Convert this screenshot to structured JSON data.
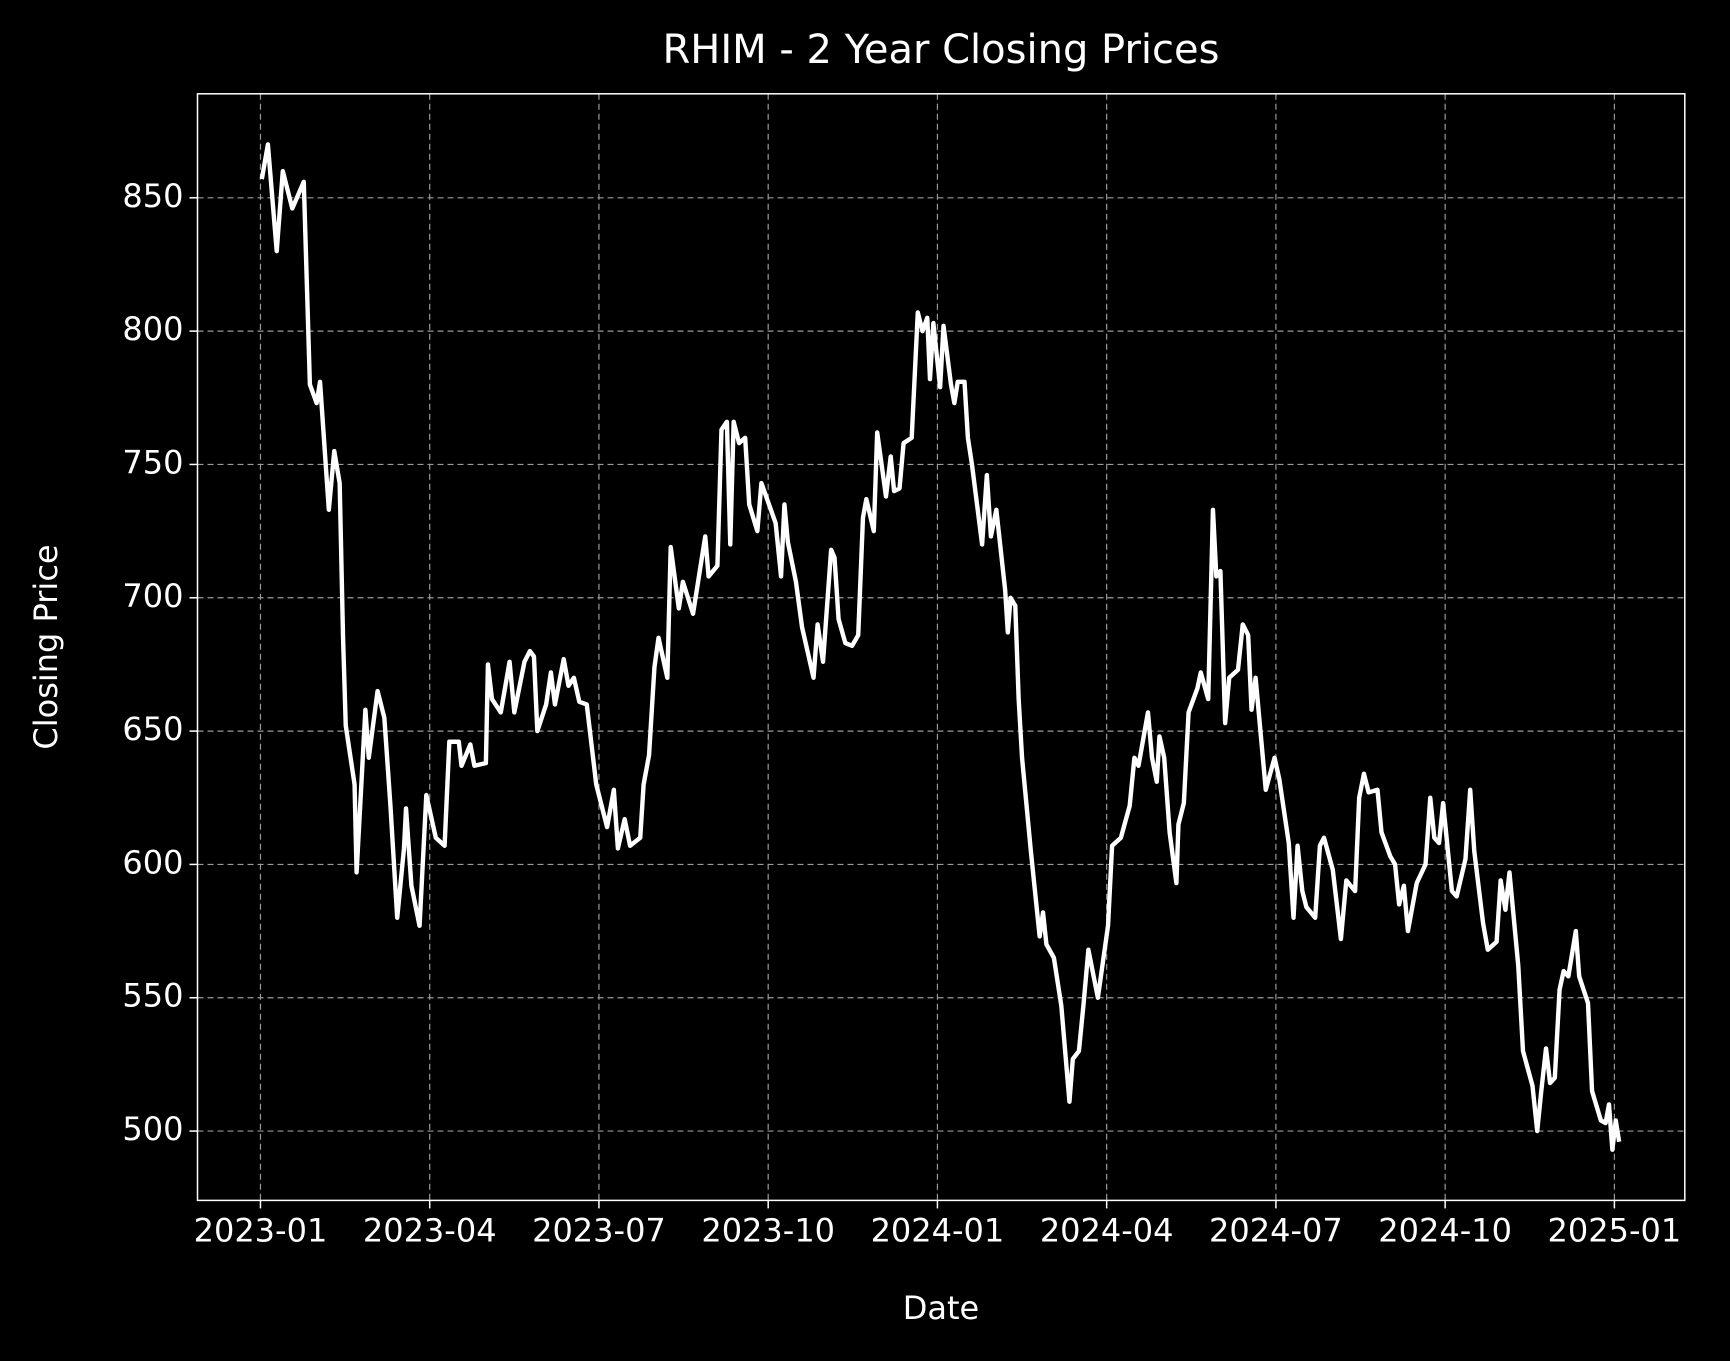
{
  "chart_data": {
    "type": "line",
    "title": "RHIM - 2 Year Closing Prices",
    "x_label": "Date",
    "y_label": "Closing Price",
    "x": [
      2023.002,
      2023.011,
      2023.024,
      2023.033,
      2023.047,
      2023.064,
      2023.073,
      2023.083,
      2023.088,
      2023.101,
      2023.109,
      2023.117,
      2023.122,
      2023.126,
      2023.139,
      2023.142,
      2023.155,
      2023.16,
      2023.173,
      2023.183,
      2023.192,
      2023.202,
      2023.212,
      2023.215,
      2023.223,
      2023.235,
      2023.245,
      2023.259,
      2023.272,
      2023.279,
      2023.293,
      2023.297,
      2023.31,
      2023.316,
      2023.333,
      2023.336,
      2023.342,
      2023.355,
      2023.368,
      2023.375,
      2023.39,
      2023.398,
      2023.404,
      2023.409,
      2023.422,
      2023.429,
      2023.435,
      2023.448,
      2023.455,
      2023.463,
      2023.471,
      2023.482,
      2023.496,
      2023.512,
      2023.522,
      2023.528,
      2023.538,
      2023.546,
      2023.561,
      2023.566,
      2023.574,
      2023.582,
      2023.588,
      2023.601,
      2023.606,
      2023.618,
      2023.624,
      2023.639,
      2023.657,
      2023.662,
      2023.675,
      2023.681,
      2023.689,
      2023.694,
      2023.699,
      2023.707,
      2023.716,
      2023.722,
      2023.734,
      2023.74,
      2023.761,
      2023.769,
      2023.774,
      2023.779,
      2023.791,
      2023.8,
      2023.817,
      2023.823,
      2023.831,
      2023.843,
      2023.848,
      2023.854,
      2023.864,
      2023.874,
      2023.883,
      2023.89,
      2023.895,
      2023.906,
      2023.911,
      2023.924,
      2023.931,
      2023.936,
      2023.944,
      2023.95,
      2023.962,
      2023.971,
      2023.978,
      2023.985,
      2023.989,
      2023.994,
      2024.004,
      2024.009,
      2024.02,
      2024.025,
      2024.03,
      2024.04,
      2024.045,
      2024.051,
      2024.066,
      2024.073,
      2024.079,
      2024.087,
      2024.1,
      2024.104,
      2024.108,
      2024.115,
      2024.12,
      2024.125,
      2024.138,
      2024.151,
      2024.156,
      2024.161,
      2024.172,
      2024.183,
      2024.195,
      2024.2,
      2024.209,
      2024.216,
      2024.223,
      2024.237,
      2024.252,
      2024.258,
      2024.271,
      2024.284,
      2024.291,
      2024.297,
      2024.311,
      2024.317,
      2024.324,
      2024.328,
      2024.335,
      2024.343,
      2024.353,
      2024.356,
      2024.364,
      2024.371,
      2024.384,
      2024.389,
      2024.4,
      2024.407,
      2024.412,
      2024.418,
      2024.425,
      2024.431,
      2024.444,
      2024.451,
      2024.459,
      2024.464,
      2024.47,
      2024.485,
      2024.498,
      2024.505,
      2024.519,
      2024.526,
      2024.532,
      2024.539,
      2024.545,
      2024.558,
      2024.565,
      2024.571,
      2024.584,
      2024.596,
      2024.604,
      2024.617,
      2024.623,
      2024.63,
      2024.637,
      2024.65,
      2024.656,
      2024.669,
      2024.676,
      2024.682,
      2024.689,
      2024.695,
      2024.708,
      2024.721,
      2024.728,
      2024.734,
      2024.741,
      2024.747,
      2024.76,
      2024.767,
      2024.78,
      2024.787,
      2024.793,
      2024.806,
      2024.813,
      2024.826,
      2024.832,
      2024.839,
      2024.845,
      2024.858,
      2024.865,
      2024.879,
      2024.886,
      2024.892,
      2024.899,
      2024.905,
      2024.912,
      2024.919,
      2024.925,
      2024.932,
      2024.943,
      2024.948,
      2024.961,
      2024.967,
      2024.98,
      2024.987,
      2024.992,
      2024.997,
      2025.002,
      2025.007
    ],
    "series": [
      {
        "name": "Close",
        "color": "#ffffff",
        "values": [
          857,
          870,
          830,
          860,
          846,
          856,
          780,
          773,
          781,
          733,
          755,
          743,
          685,
          652,
          630,
          597,
          658,
          640,
          665,
          655,
          622,
          580,
          606,
          621,
          592,
          577,
          626,
          610,
          607,
          646,
          646,
          637,
          645,
          637,
          638,
          675,
          662,
          657,
          676,
          657,
          676,
          680,
          678,
          650,
          660,
          672,
          660,
          677,
          667,
          670,
          661,
          660,
          630,
          614,
          628,
          606,
          617,
          607,
          610,
          630,
          641,
          674,
          685,
          670,
          719,
          696,
          706,
          694,
          723,
          708,
          712,
          763,
          766,
          720,
          766,
          758,
          760,
          735,
          725,
          743,
          728,
          708,
          735,
          721,
          706,
          689,
          670,
          690,
          676,
          718,
          715,
          692,
          683,
          682,
          686,
          730,
          737,
          725,
          762,
          738,
          753,
          740,
          741,
          758,
          760,
          807,
          800,
          805,
          782,
          803,
          779,
          802,
          780,
          773,
          781,
          781,
          760,
          750,
          720,
          746,
          723,
          733,
          703,
          687,
          700,
          697,
          662,
          640,
          605,
          573,
          582,
          570,
          565,
          547,
          511,
          527,
          530,
          548,
          568,
          550,
          577,
          607,
          610,
          622,
          640,
          637,
          657,
          640,
          631,
          648,
          640,
          612,
          593,
          615,
          623,
          657,
          666,
          672,
          662,
          733,
          708,
          710,
          653,
          670,
          673,
          690,
          686,
          658,
          670,
          628,
          640,
          632,
          608,
          580,
          607,
          590,
          584,
          580,
          607,
          610,
          598,
          572,
          594,
          590,
          625,
          634,
          627,
          628,
          612,
          603,
          600,
          585,
          592,
          575,
          593,
          600,
          625,
          610,
          608,
          623,
          590,
          588,
          602,
          628,
          605,
          578,
          568,
          571,
          594,
          583,
          597,
          562,
          530,
          517,
          500,
          515,
          531,
          518,
          520,
          553,
          560,
          558,
          575,
          558,
          548,
          515,
          504,
          503,
          510,
          493,
          504,
          496
        ]
      }
    ],
    "xlim": [
      2022.907,
      2025.104
    ],
    "xticks": [
      {
        "value": 2023,
        "label": "2023-01"
      },
      {
        "value": 2023.25,
        "label": "2023-04"
      },
      {
        "value": 2023.5,
        "label": "2023-07"
      },
      {
        "value": 2023.75,
        "label": "2023-10"
      },
      {
        "value": 2024,
        "label": "2024-01"
      },
      {
        "value": 2024.25,
        "label": "2024-04"
      },
      {
        "value": 2024.5,
        "label": "2024-07"
      },
      {
        "value": 2024.75,
        "label": "2024-10"
      },
      {
        "value": 2025,
        "label": "2025-01"
      }
    ],
    "ylim": [
      474,
      889
    ],
    "yticks": [
      500,
      550,
      600,
      650,
      700,
      750,
      800,
      850
    ],
    "grid": true
  }
}
